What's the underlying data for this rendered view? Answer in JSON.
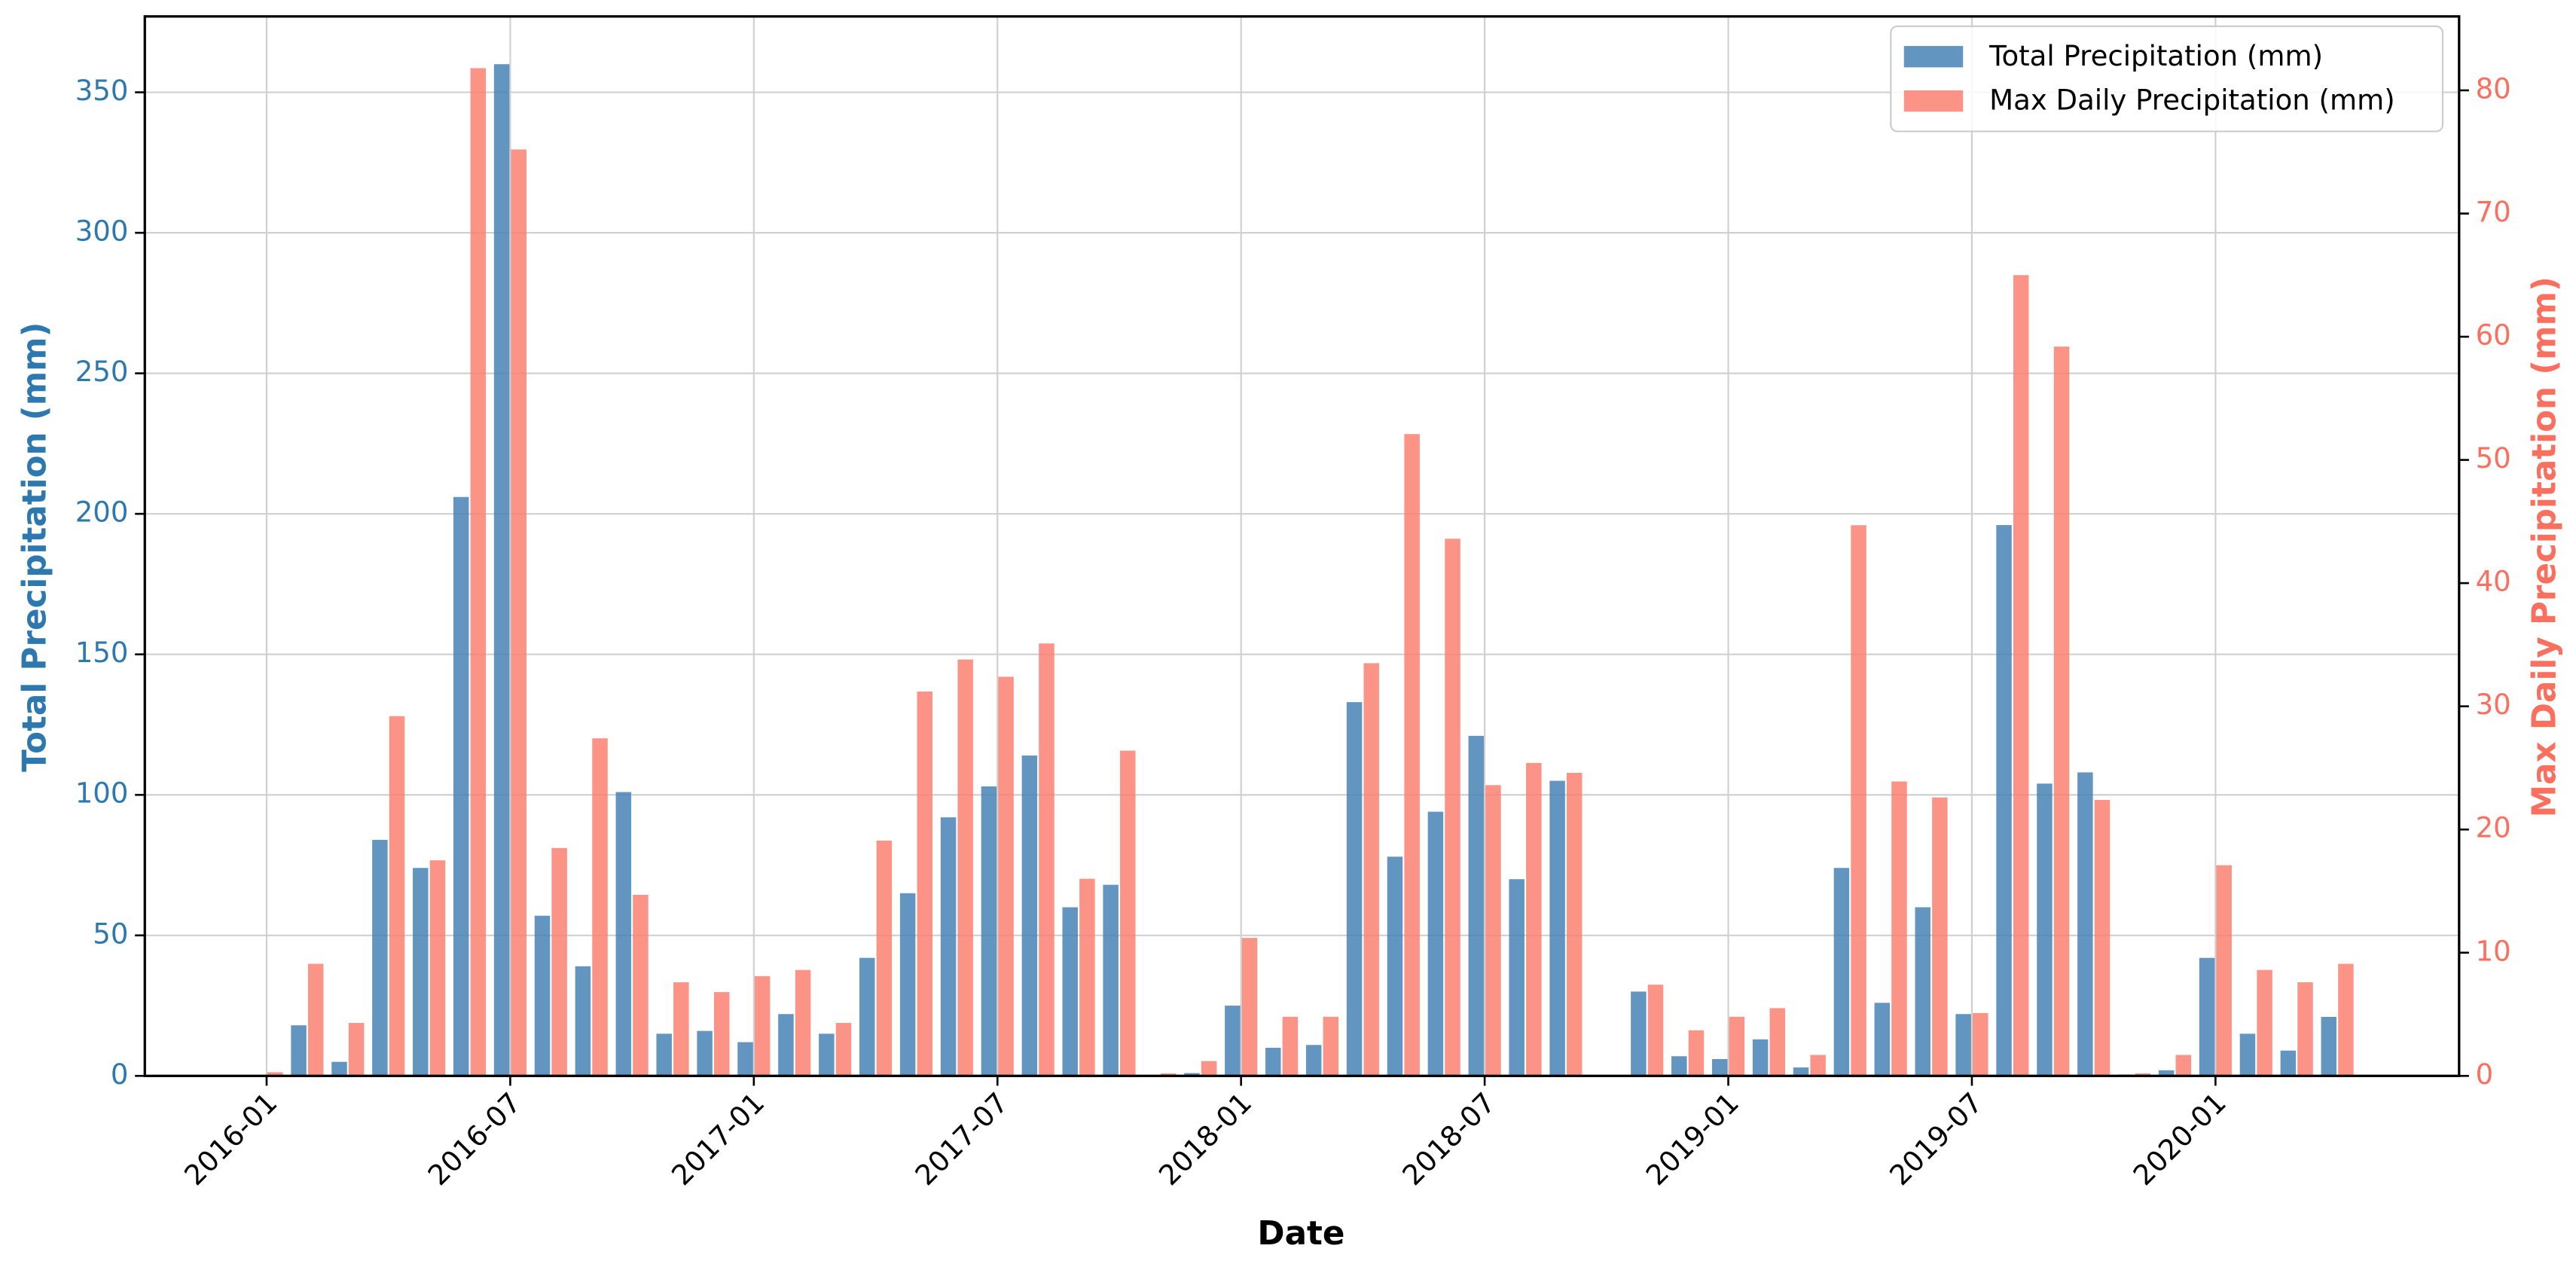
{
  "chart_data": {
    "type": "bar",
    "xlabel": "Date",
    "ylabel": "Total Precipitation (mm)",
    "y2label": "Max Daily Precipitation (mm)",
    "ylabel_color": "#2e78b0",
    "y2label_color": "#fa6f5e",
    "x": [
      "2016-01",
      "2016-02",
      "2016-03",
      "2016-04",
      "2016-05",
      "2016-06",
      "2016-07",
      "2016-08",
      "2016-09",
      "2016-10",
      "2016-11",
      "2016-12",
      "2017-01",
      "2017-02",
      "2017-03",
      "2017-04",
      "2017-05",
      "2017-06",
      "2017-07",
      "2017-08",
      "2017-09",
      "2017-10",
      "2017-11",
      "2017-12",
      "2018-01",
      "2018-02",
      "2018-03",
      "2018-04",
      "2018-05",
      "2018-06",
      "2018-07",
      "2018-08",
      "2018-09",
      "2018-10",
      "2018-11",
      "2018-12",
      "2019-01",
      "2019-02",
      "2019-03",
      "2019-04",
      "2019-05",
      "2019-06",
      "2019-07",
      "2019-08",
      "2019-09",
      "2019-10",
      "2019-11",
      "2019-12",
      "2020-01",
      "2020-02",
      "2020-03",
      "2020-04"
    ],
    "xlim": [
      "2015-10",
      "2020-07"
    ],
    "xticks": [
      "2016-01",
      "2016-07",
      "2017-01",
      "2017-07",
      "2018-01",
      "2018-07",
      "2019-01",
      "2019-07",
      "2020-01"
    ],
    "ylim": [
      0,
      377
    ],
    "yticks": [
      0,
      50,
      100,
      150,
      200,
      250,
      300,
      350
    ],
    "y2lim": [
      0,
      86
    ],
    "y2ticks": [
      0,
      10,
      20,
      30,
      40,
      50,
      60,
      70,
      80
    ],
    "grid": true,
    "legend": "upper right",
    "series": [
      {
        "name": "Total Precipitation (mm)",
        "color": "#4682b4",
        "values": [
          0,
          18,
          5,
          84,
          74,
          206,
          360,
          57,
          39,
          101,
          15,
          16,
          12,
          22,
          15,
          42,
          65,
          92,
          103,
          114,
          60,
          68,
          0,
          1,
          25,
          10,
          11,
          133,
          78,
          94,
          121,
          70,
          105,
          null,
          30,
          7,
          6,
          13,
          3,
          74,
          26,
          60,
          22,
          196,
          104,
          108,
          0.5,
          2,
          42,
          15,
          9,
          21
        ]
      },
      {
        "name": "Max Daily Precipitation (mm)",
        "color": "#fa8072",
        "axis": "y2",
        "values": [
          0.3,
          9.1,
          4.3,
          29.2,
          17.5,
          81.8,
          75.2,
          18.5,
          27.4,
          14.7,
          7.6,
          6.8,
          8.1,
          8.6,
          4.3,
          19.1,
          31.2,
          33.8,
          32.4,
          35.1,
          16.0,
          26.4,
          0.2,
          1.2,
          11.2,
          4.8,
          4.8,
          33.5,
          52.1,
          43.6,
          23.6,
          25.4,
          24.6,
          null,
          7.4,
          3.7,
          4.8,
          5.5,
          1.7,
          44.7,
          23.9,
          22.6,
          5.1,
          65.0,
          59.2,
          22.4,
          0.2,
          1.7,
          17.1,
          8.6,
          7.6,
          9.1
        ]
      }
    ]
  }
}
